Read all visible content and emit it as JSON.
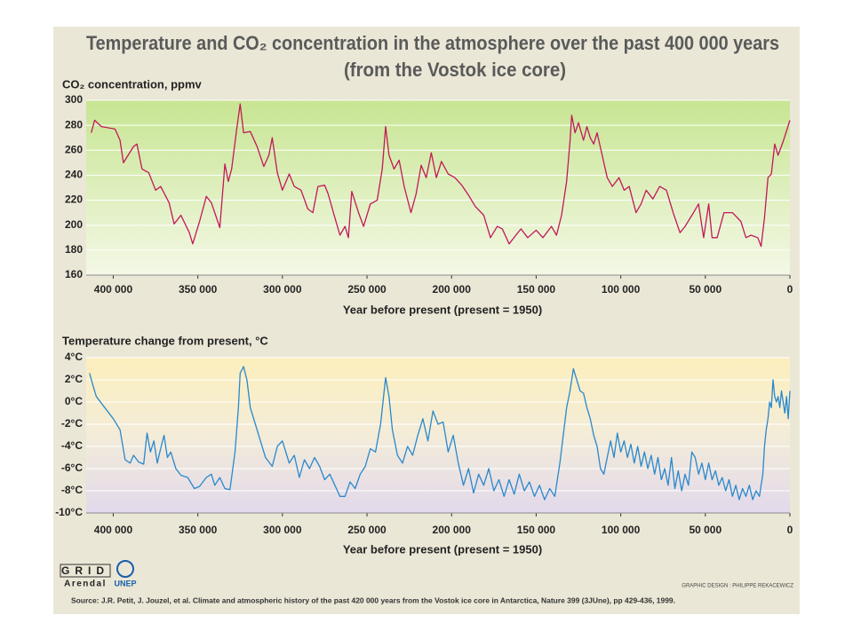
{
  "header": {
    "title": [
      "Temperature and CO₂ concentration in the atmosphere over the past 400 000 years",
      "(from the Vostok ice core)"
    ]
  },
  "chart_data": [
    {
      "type": "line",
      "y_label": "CO₂ concentration, ppmv",
      "x_label": "Year before present (present = 1950)",
      "xlim": [
        416000,
        0
      ],
      "ylim": [
        160,
        300
      ],
      "grid": true,
      "xticks": [
        {
          "value": 400000,
          "label": "400 000"
        },
        {
          "value": 350000,
          "label": "350 000"
        },
        {
          "value": 300000,
          "label": "300 000"
        },
        {
          "value": 250000,
          "label": "250 000"
        },
        {
          "value": 200000,
          "label": "200 000"
        },
        {
          "value": 150000,
          "label": "150 000"
        },
        {
          "value": 100000,
          "label": "100 000"
        },
        {
          "value": 50000,
          "label": "50 000"
        },
        0
      ],
      "yticks": [
        160,
        180,
        200,
        220,
        240,
        260,
        280,
        300
      ],
      "x": [
        413000,
        411000,
        407000,
        399000,
        396000,
        394000,
        388000,
        386000,
        383000,
        379000,
        375000,
        372000,
        367000,
        364000,
        360000,
        355000,
        353000,
        349000,
        345000,
        342000,
        337000,
        334000,
        332000,
        330000,
        327000,
        325000,
        323000,
        319000,
        315000,
        311000,
        308000,
        306000,
        303000,
        300000,
        296000,
        293000,
        289000,
        285000,
        282000,
        279000,
        275000,
        273000,
        269000,
        266000,
        263000,
        261000,
        259000,
        255000,
        252000,
        248000,
        244000,
        241000,
        239000,
        237000,
        234000,
        231000,
        228000,
        224000,
        221000,
        218000,
        215000,
        212000,
        209000,
        206000,
        202000,
        198000,
        194000,
        190000,
        186000,
        181000,
        177000,
        173000,
        170000,
        166000,
        162000,
        159000,
        155000,
        150000,
        146000,
        141000,
        138000,
        135000,
        132000,
        130000,
        129000,
        127000,
        125000,
        122000,
        120000,
        118000,
        116000,
        114000,
        111000,
        108000,
        105000,
        101000,
        98000,
        95000,
        91000,
        88000,
        85000,
        81000,
        77000,
        73000,
        69000,
        65000,
        62000,
        57000,
        54000,
        51000,
        48000,
        46000,
        43000,
        39000,
        34000,
        29000,
        26000,
        23000,
        19000,
        17000,
        15000,
        13000,
        11000,
        9000,
        7000,
        4000,
        0
      ],
      "series": [
        {
          "name": "CO₂",
          "color": "#c2185b",
          "values": [
            274,
            284,
            279,
            277,
            268,
            250,
            263,
            265,
            245,
            242,
            228,
            231,
            218,
            201,
            208,
            194,
            185,
            203,
            223,
            218,
            198,
            249,
            235,
            245,
            277,
            297,
            274,
            275,
            263,
            247,
            256,
            270,
            242,
            228,
            241,
            231,
            228,
            213,
            210,
            231,
            232,
            225,
            206,
            192,
            199,
            190,
            227,
            210,
            199,
            217,
            220,
            245,
            279,
            256,
            245,
            252,
            231,
            210,
            225,
            248,
            238,
            258,
            238,
            251,
            241,
            238,
            232,
            224,
            215,
            208,
            190,
            199,
            197,
            185,
            192,
            197,
            190,
            196,
            190,
            199,
            192,
            208,
            235,
            267,
            288,
            274,
            282,
            268,
            279,
            270,
            265,
            274,
            256,
            238,
            231,
            238,
            228,
            231,
            210,
            217,
            228,
            221,
            231,
            228,
            210,
            194,
            199,
            210,
            217,
            190,
            217,
            190,
            190,
            210,
            210,
            203,
            190,
            192,
            190,
            183,
            206,
            238,
            241,
            265,
            256,
            267,
            284
          ]
        }
      ]
    },
    {
      "type": "line",
      "y_label": "Temperature change from present, °C",
      "x_label": "Year before present (present = 1950)",
      "xlim": [
        416000,
        0
      ],
      "ylim": [
        -10,
        4
      ],
      "grid": true,
      "xticks": [
        {
          "value": 400000,
          "label": "400 000"
        },
        {
          "value": 350000,
          "label": "350 000"
        },
        {
          "value": 300000,
          "label": "300 000"
        },
        {
          "value": 250000,
          "label": "250 000"
        },
        {
          "value": 200000,
          "label": "200 000"
        },
        {
          "value": 150000,
          "label": "150 000"
        },
        {
          "value": 100000,
          "label": "100 000"
        },
        {
          "value": 50000,
          "label": "50 000"
        },
        0
      ],
      "yticks": [
        {
          "value": 4,
          "label": "4°C"
        },
        {
          "value": 2,
          "label": "2°C"
        },
        {
          "value": 0,
          "label": "0°C"
        },
        {
          "value": -2,
          "label": "-2°C"
        },
        {
          "value": -4,
          "label": "-4°C"
        },
        {
          "value": -6,
          "label": "-6°C"
        },
        {
          "value": -8,
          "label": "-8°C"
        },
        {
          "value": -10,
          "label": "-10°C"
        }
      ],
      "x": [
        414000,
        412000,
        410000,
        405000,
        400000,
        396000,
        393000,
        390000,
        388000,
        385000,
        382000,
        380000,
        378000,
        376000,
        374000,
        372000,
        370000,
        368000,
        366000,
        363000,
        360000,
        356000,
        352000,
        349000,
        345000,
        342000,
        340000,
        337000,
        334000,
        331000,
        328000,
        326000,
        325000,
        323000,
        321000,
        319000,
        316000,
        313000,
        310000,
        306000,
        303000,
        300000,
        296000,
        293000,
        290000,
        287000,
        284000,
        281000,
        278000,
        275000,
        272000,
        269000,
        266000,
        263000,
        260000,
        257000,
        254000,
        251000,
        248000,
        245000,
        242000,
        239000,
        237000,
        235000,
        232000,
        229000,
        226000,
        223000,
        220000,
        217000,
        214000,
        211000,
        208000,
        205000,
        202000,
        199000,
        196000,
        193000,
        190000,
        187000,
        184000,
        181000,
        178000,
        175000,
        172000,
        169000,
        166000,
        163000,
        160000,
        157000,
        154000,
        151000,
        148000,
        145000,
        142000,
        139000,
        136000,
        134000,
        132000,
        130000,
        128000,
        126000,
        124000,
        122000,
        120000,
        118000,
        116000,
        114000,
        112000,
        110000,
        108000,
        106000,
        104000,
        102000,
        100000,
        98000,
        96000,
        94000,
        92000,
        90000,
        88000,
        86000,
        84000,
        82000,
        80000,
        78000,
        76000,
        74000,
        72000,
        70000,
        68000,
        66000,
        64000,
        62000,
        60000,
        58000,
        56000,
        54000,
        52000,
        50000,
        48000,
        46000,
        44000,
        42000,
        40000,
        38000,
        36000,
        34000,
        32000,
        30000,
        28000,
        26000,
        24000,
        22000,
        20000,
        18000,
        16000,
        15000,
        14000,
        13000,
        12000,
        11000,
        10000,
        9000,
        8000,
        7000,
        6000,
        5000,
        4000,
        3000,
        2000,
        1000,
        0
      ],
      "series": [
        {
          "name": "Temperature",
          "color": "#2a88cc",
          "values": [
            2.6,
            1.5,
            0.5,
            -0.5,
            -1.5,
            -2.5,
            -5.2,
            -5.5,
            -4.8,
            -5.4,
            -5.6,
            -2.8,
            -4.5,
            -3.5,
            -5.5,
            -4.2,
            -3.0,
            -5.0,
            -4.5,
            -6.0,
            -6.6,
            -6.8,
            -7.8,
            -7.6,
            -6.8,
            -6.5,
            -7.5,
            -6.8,
            -7.8,
            -7.9,
            -4.5,
            -0.5,
            2.6,
            3.2,
            2.0,
            -0.5,
            -2.0,
            -3.5,
            -5.0,
            -5.8,
            -4.0,
            -3.5,
            -5.5,
            -4.8,
            -6.8,
            -5.2,
            -6.0,
            -5.0,
            -5.8,
            -7.0,
            -6.5,
            -7.5,
            -8.5,
            -8.5,
            -7.2,
            -7.8,
            -6.5,
            -5.8,
            -4.2,
            -4.5,
            -2.0,
            2.2,
            0.5,
            -2.5,
            -4.8,
            -5.5,
            -4.0,
            -4.8,
            -3.0,
            -1.5,
            -3.5,
            -0.8,
            -2.0,
            -1.8,
            -4.5,
            -3.0,
            -5.5,
            -7.5,
            -6.0,
            -8.2,
            -6.5,
            -7.5,
            -6.0,
            -8.0,
            -7.0,
            -8.5,
            -7.0,
            -8.3,
            -6.5,
            -8.0,
            -7.2,
            -8.5,
            -7.5,
            -8.8,
            -7.8,
            -8.5,
            -5.5,
            -3.0,
            -0.5,
            1.0,
            3.0,
            2.0,
            1.0,
            0.8,
            -0.5,
            -1.5,
            -3.0,
            -4.0,
            -6.0,
            -6.5,
            -5.0,
            -3.5,
            -5.0,
            -2.8,
            -4.5,
            -3.5,
            -5.0,
            -3.8,
            -5.5,
            -4.0,
            -5.8,
            -4.5,
            -6.0,
            -4.8,
            -6.5,
            -5.0,
            -7.0,
            -6.0,
            -7.5,
            -5.0,
            -7.8,
            -6.2,
            -8.0,
            -6.5,
            -7.5,
            -4.5,
            -5.0,
            -6.5,
            -5.5,
            -7.0,
            -5.5,
            -7.0,
            -6.2,
            -7.5,
            -6.8,
            -8.0,
            -7.0,
            -8.5,
            -7.5,
            -8.8,
            -7.8,
            -8.5,
            -7.5,
            -8.8,
            -8.0,
            -8.5,
            -6.5,
            -4.0,
            -2.5,
            -1.5,
            0.0,
            -0.5,
            2.0,
            0.5,
            0.0,
            0.5,
            -0.5,
            1.0,
            0.0,
            -1.0,
            0.5,
            -1.5,
            1.0
          ]
        }
      ]
    }
  ],
  "footer": {
    "logo_grid": "GRID",
    "logo_arendal": "Arendal",
    "logo_unep": "UNEP",
    "credit": "GRAPHIC DESIGN : PHILIPPE REKACEWICZ",
    "source": "Source: J.R. Petit, J. Jouzel, et al. Climate and atmospheric history of the past 420 000 years from the Vostok ice core in Antarctica, Nature 399 (3JUne), pp 429-436, 1999."
  }
}
